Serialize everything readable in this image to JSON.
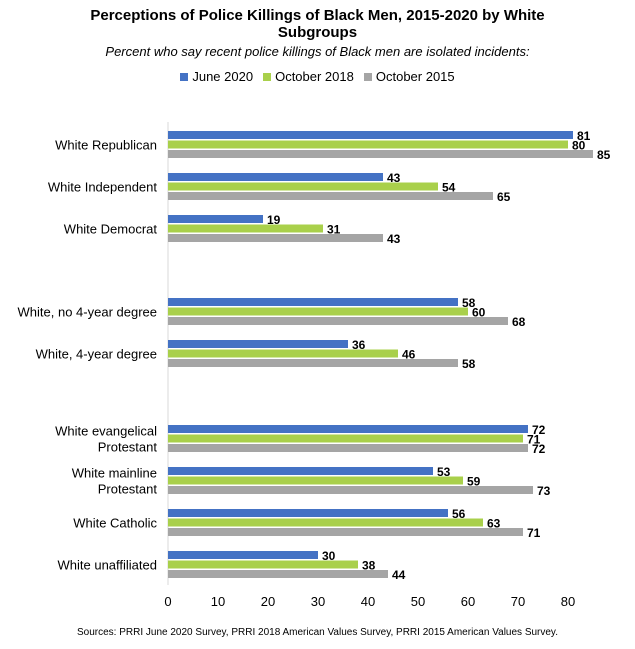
{
  "title_lines": [
    "Perceptions of Police Killings of Black Men, 2015-2020 by White",
    "Subgroups"
  ],
  "subtitle": "Percent who say recent police killings of Black men are isolated incidents:",
  "source": "Sources: PRRI June 2020 Survey, PRRI 2018 American Values Survey, PRRI 2015 American Values Survey.",
  "colors": {
    "June 2020": "#4472C4",
    "October 2018": "#A9D04B",
    "October 2015": "#A5A5A5"
  },
  "chart_data": {
    "type": "bar",
    "orientation": "horizontal",
    "title": "Perceptions of Police Killings of Black Men, 2015-2020 by White Subgroups",
    "subtitle": "Percent who say recent police killings of Black men are isolated incidents:",
    "categories": [
      [
        "White Republican"
      ],
      [
        "White Independent"
      ],
      [
        "White Democrat"
      ],
      [
        "White, no 4-year degree"
      ],
      [
        "White, 4-year degree"
      ],
      [
        "White evangelical",
        "Protestant"
      ],
      [
        "White mainline",
        "Protestant"
      ],
      [
        "White Catholic"
      ],
      [
        "White unaffiliated"
      ]
    ],
    "series": [
      {
        "name": "June 2020",
        "values": [
          81,
          43,
          19,
          58,
          36,
          72,
          53,
          56,
          30
        ]
      },
      {
        "name": "October 2018",
        "values": [
          80,
          54,
          31,
          60,
          46,
          71,
          59,
          63,
          38
        ]
      },
      {
        "name": "October 2015",
        "values": [
          85,
          65,
          43,
          68,
          58,
          72,
          73,
          71,
          44
        ]
      }
    ],
    "xlim": [
      0,
      80
    ],
    "xticks": [
      0,
      10,
      20,
      30,
      40,
      50,
      60,
      70,
      80
    ],
    "legend_position": "top",
    "grid": false,
    "data_labels": true
  }
}
